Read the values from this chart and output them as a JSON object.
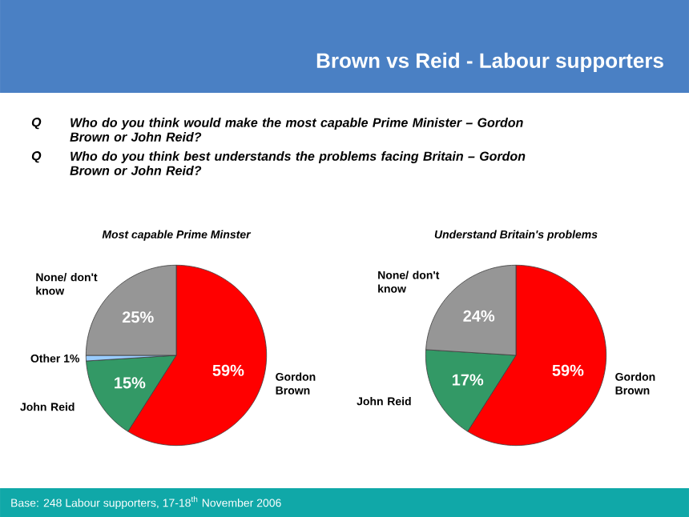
{
  "chart_data": [
    {
      "type": "other",
      "title": "Brown vs Reid - Labour supporters",
      "annotations": [
        "Q",
        "Who do you think would make the most capable Prime Minister – Gordon Brown or John Reid?",
        "Q",
        "Who do you think best understands the problems facing Britain – Gordon Brown or John Reid?",
        "Base: 248 Labour supporters, 17-18$^{th}$ November 2006"
      ]
    },
    {
      "type": "pie",
      "title": "Most capable Prime Minster",
      "categories": [
        "Gordon Brown",
        "John Reid",
        "Other",
        "None/ don't know"
      ],
      "values": [
        59,
        15,
        1,
        25
      ],
      "colors": [
        "#ff0000",
        "#339966",
        "#99ccff",
        "#969696"
      ],
      "value_labels": [
        "59%",
        "15%",
        "1%",
        "25%"
      ]
    },
    {
      "type": "pie",
      "title": "Understand Britain's problems",
      "categories": [
        "Gordon Brown",
        "John Reid",
        "None/ don't know"
      ],
      "values": [
        59,
        17,
        24
      ],
      "colors": [
        "#ff0000",
        "#339966",
        "#969696"
      ],
      "value_labels": [
        "59%",
        "17%",
        "24%"
      ]
    }
  ]
}
